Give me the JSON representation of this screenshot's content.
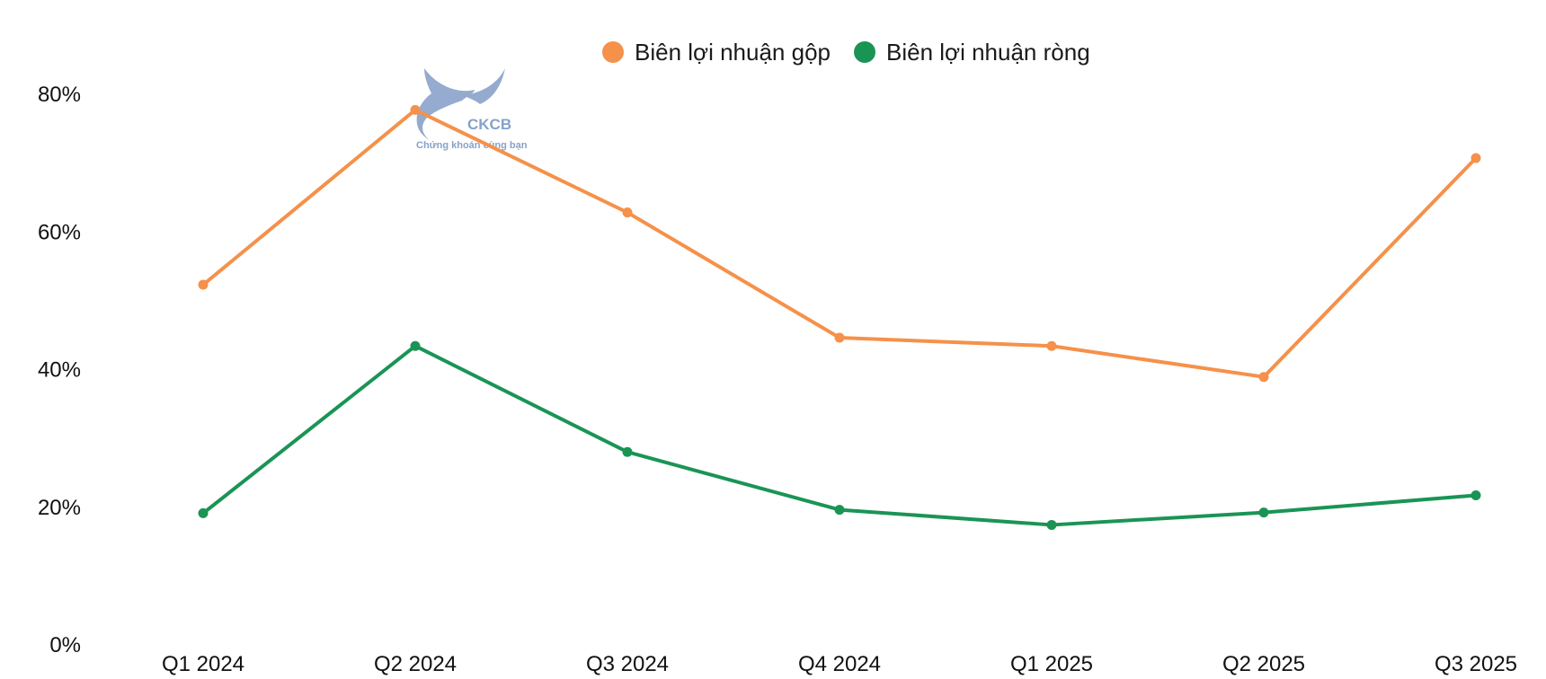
{
  "chart_data": {
    "type": "line",
    "categories": [
      "Q1 2024",
      "Q2 2024",
      "Q3 2024",
      "Q4 2024",
      "Q1 2025",
      "Q2 2025",
      "Q3 2025"
    ],
    "series": [
      {
        "name": "Biên lợi nhuận gộp",
        "color": "#F5914A",
        "values": [
          52.2,
          77.6,
          62.7,
          44.5,
          43.3,
          38.8,
          70.6
        ]
      },
      {
        "name": "Biên lợi nhuận ròng",
        "color": "#1A9455",
        "values": [
          19.0,
          43.3,
          27.9,
          19.5,
          17.3,
          19.1,
          21.6
        ]
      }
    ],
    "ylim": [
      0,
      80
    ],
    "yticks": [
      "0%",
      "20%",
      "40%",
      "60%",
      "80%"
    ],
    "ytick_values": [
      0,
      20,
      40,
      60,
      80
    ],
    "legend_position": "top-center",
    "grid": false
  },
  "watermark": {
    "name": "CKCB",
    "tagline": "Chứng khoán cùng bạn",
    "color": "#7f9ec8",
    "icon": "whale-tail-icon"
  }
}
